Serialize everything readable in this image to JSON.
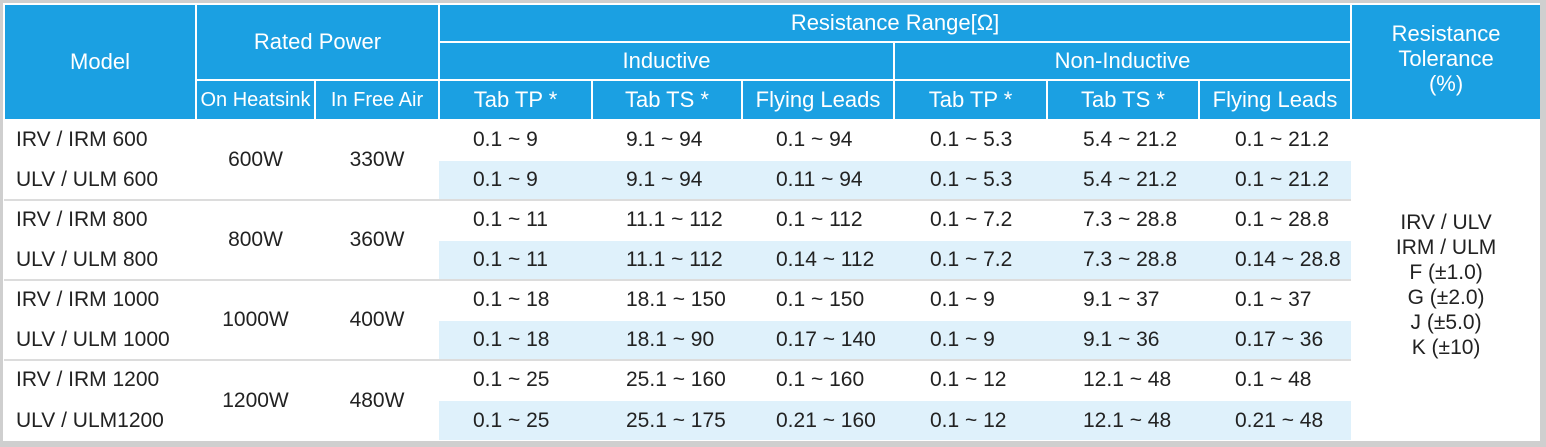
{
  "header": {
    "model": "Model",
    "rated_power": "Rated Power",
    "on_heatsink": "On Heatsink",
    "in_free_air": "In Free Air",
    "resistance_range": "Resistance Range[Ω]",
    "inductive": "Inductive",
    "non_inductive": "Non-Inductive",
    "tab_tp": "Tab TP *",
    "tab_ts": "Tab TS *",
    "flying_leads": "Flying Leads",
    "tolerance_line1": "Resistance",
    "tolerance_line2": "Tolerance",
    "tolerance_line3": "(%)"
  },
  "groups": [
    {
      "heatsink": "600W",
      "free_air": "330W",
      "rows": [
        {
          "model": "IRV / IRM 600",
          "ind_tp": "0.1 ~ 9",
          "ind_ts": "9.1 ~ 94",
          "ind_fl": "0.1 ~ 94",
          "non_tp": "0.1 ~ 5.3",
          "non_ts": "5.4 ~ 21.2",
          "non_fl": "0.1 ~ 21.2"
        },
        {
          "model": "ULV / ULM 600",
          "ind_tp": "0.1 ~ 9",
          "ind_ts": "9.1 ~ 94",
          "ind_fl": "0.11 ~ 94",
          "non_tp": "0.1 ~ 5.3",
          "non_ts": "5.4 ~ 21.2",
          "non_fl": "0.1 ~ 21.2"
        }
      ]
    },
    {
      "heatsink": "800W",
      "free_air": "360W",
      "rows": [
        {
          "model": "IRV  / IRM 800",
          "ind_tp": "0.1 ~ 11",
          "ind_ts": "11.1 ~ 112",
          "ind_fl": "0.1 ~ 112",
          "non_tp": "0.1 ~ 7.2",
          "non_ts": "7.3 ~ 28.8",
          "non_fl": "0.1 ~ 28.8"
        },
        {
          "model": "ULV  / ULM 800",
          "ind_tp": "0.1 ~ 11",
          "ind_ts": "11.1 ~ 112",
          "ind_fl": "0.14 ~ 112",
          "non_tp": "0.1 ~ 7.2",
          "non_ts": "7.3 ~ 28.8",
          "non_fl": "0.14 ~ 28.8"
        }
      ]
    },
    {
      "heatsink": "1000W",
      "free_air": "400W",
      "rows": [
        {
          "model": "IRV / IRM 1000",
          "ind_tp": "0.1 ~ 18",
          "ind_ts": "18.1 ~ 150",
          "ind_fl": "0.1 ~ 150",
          "non_tp": "0.1 ~ 9",
          "non_ts": "9.1 ~ 37",
          "non_fl": "0.1 ~ 37"
        },
        {
          "model": "ULV / ULM 1000",
          "ind_tp": "0.1 ~ 18",
          "ind_ts": "18.1 ~ 90",
          "ind_fl": "0.17 ~ 140",
          "non_tp": "0.1 ~ 9",
          "non_ts": "9.1 ~ 36",
          "non_fl": "0.17 ~ 36"
        }
      ]
    },
    {
      "heatsink": "1200W",
      "free_air": "480W",
      "rows": [
        {
          "model": "IRV / IRM 1200",
          "ind_tp": "0.1 ~ 25",
          "ind_ts": "25.1 ~ 160",
          "ind_fl": "0.1 ~ 160",
          "non_tp": "0.1 ~ 12",
          "non_ts": "12.1 ~ 48",
          "non_fl": "0.1 ~ 48"
        },
        {
          "model": "ULV / ULM1200",
          "ind_tp": "0.1 ~ 25",
          "ind_ts": "25.1 ~ 175",
          "ind_fl": "0.21 ~ 160",
          "non_tp": "0.1 ~ 12",
          "non_ts": "12.1 ~ 48",
          "non_fl": "0.21 ~ 48"
        }
      ]
    }
  ],
  "tolerance": {
    "line1": "IRV / ULV",
    "line2": "IRM / ULM",
    "line3": "F (±1.0)",
    "line4": "G (±2.0)",
    "line5": "J (±5.0)",
    "line6": "K (±10)"
  },
  "colors": {
    "header_bg": "#1ba0e2",
    "alt_row_bg": "#dff1fb"
  }
}
